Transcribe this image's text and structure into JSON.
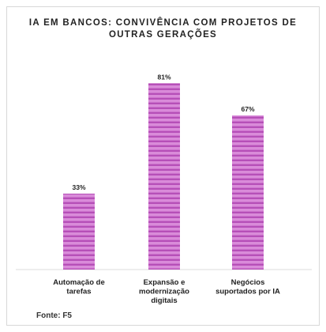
{
  "chart_data": {
    "type": "bar",
    "title": "IA EM BANCOS: CONVIVÊNCIA COM PROJETOS DE OUTRAS GERAÇÕES",
    "categories": [
      "Automação de tarefas",
      "Expansão e modernização digitais",
      "Negócios suportados por IA"
    ],
    "category_lines": [
      [
        "Automação de",
        "tarefas"
      ],
      [
        "Expansão e",
        "modernização",
        "digitais"
      ],
      [
        "Negócios",
        "suportados por IA"
      ]
    ],
    "values": [
      33,
      81,
      67
    ],
    "value_labels": [
      "33%",
      "81%",
      "67%"
    ],
    "ylim": [
      0,
      100
    ],
    "grid": false,
    "bar_color": "#d98bd9",
    "stripe_color": "#b64fb8"
  },
  "source": "Fonte: F5"
}
